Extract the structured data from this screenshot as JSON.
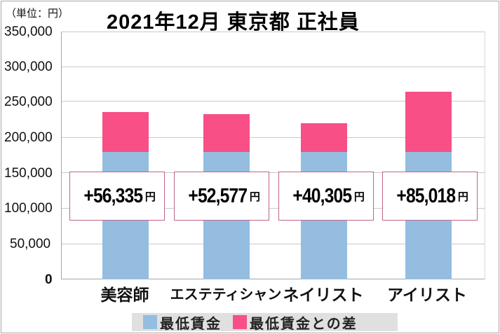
{
  "header": {
    "unit": "（単位：円）",
    "title": "2021年12月 東京都 正社員"
  },
  "colors": {
    "min_wage": "#94bde0",
    "difference": "#f84f86",
    "label_border": "#c0648c",
    "legend_bg": "#e0e0e0"
  },
  "yaxis": {
    "ticks": [
      "350,000",
      "300,000",
      "250,000",
      "200,000",
      "150,000",
      "100,000",
      "50,000",
      "0"
    ]
  },
  "labels": [
    {
      "value": "+56,335",
      "suffix": "円"
    },
    {
      "value": "+52,577",
      "suffix": "円"
    },
    {
      "value": "+40,305",
      "suffix": "円"
    },
    {
      "value": "+85,018",
      "suffix": "円"
    }
  ],
  "categories": [
    "美容師",
    "エステティシャン",
    "ネイリスト",
    "アイリスト"
  ],
  "legend": [
    {
      "label": "最低賃金"
    },
    {
      "label": "最低賃金との差"
    }
  ],
  "chart_data": {
    "type": "bar",
    "stacked": true,
    "title": "2021年12月 東京都 正社員",
    "ylabel": "（単位：円）",
    "xlabel": "",
    "categories": [
      "美容師",
      "エステティシャン",
      "ネイリスト",
      "アイリスト"
    ],
    "series": [
      {
        "name": "最低賃金",
        "color": "#94bde0",
        "values": [
          180408,
          180408,
          180408,
          180408
        ]
      },
      {
        "name": "最低賃金との差",
        "color": "#f84f86",
        "values": [
          56335,
          52577,
          40305,
          85018
        ]
      }
    ],
    "totals": [
      236743,
      232985,
      220713,
      265426
    ],
    "annotations": [
      "+56,335円",
      "+52,577円",
      "+40,305円",
      "+85,018円"
    ],
    "ylim": [
      0,
      350000
    ],
    "yticks": [
      0,
      50000,
      100000,
      150000,
      200000,
      250000,
      300000,
      350000
    ],
    "grid": true,
    "legend_position": "bottom"
  }
}
